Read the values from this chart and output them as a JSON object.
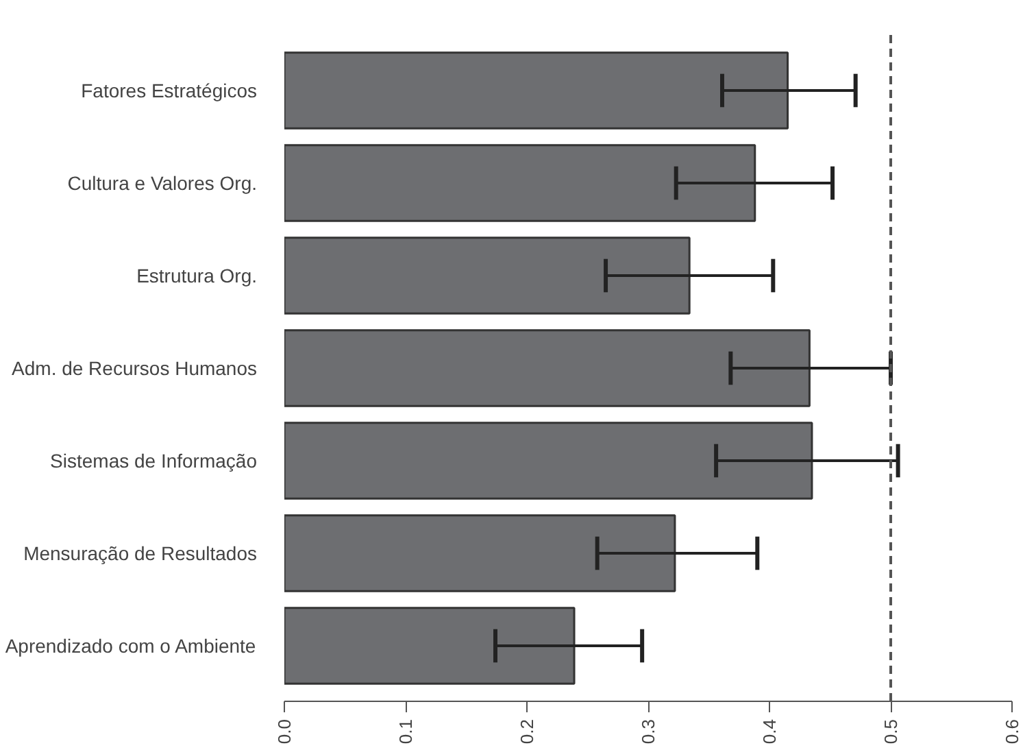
{
  "chart_data": {
    "type": "bar",
    "orientation": "horizontal",
    "categories": [
      "Fatores Estratégicos",
      "Cultura e Valores Org.",
      "Estrutura Org.",
      "Adm. de Recursos Humanos",
      "Sistemas de Informação",
      "Mensuração de Resultados",
      "Aprendizado com o Ambiente"
    ],
    "values": [
      0.415,
      0.388,
      0.334,
      0.433,
      0.435,
      0.322,
      0.239
    ],
    "errors": [
      [
        0.361,
        0.471
      ],
      [
        0.323,
        0.452
      ],
      [
        0.265,
        0.403
      ],
      [
        0.368,
        0.5
      ],
      [
        0.356,
        0.506
      ],
      [
        0.258,
        0.39
      ],
      [
        0.174,
        0.295
      ]
    ],
    "color": "#6d6e71",
    "xlim": [
      0,
      0.6
    ],
    "xticks": [
      {
        "value": 0,
        "label": "0.0"
      },
      0.1,
      0.2,
      0.3,
      0.4,
      0.5,
      0.6
    ],
    "ref_lines": [
      {
        "axis": "x",
        "value": 0.5,
        "line_style": "dashed",
        "color": "#555555"
      }
    ],
    "grid": false
  }
}
